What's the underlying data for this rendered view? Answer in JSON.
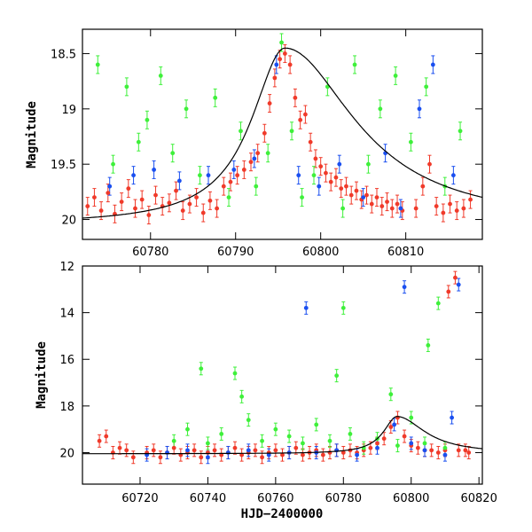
{
  "colors": {
    "red": "#f03a2a",
    "green": "#3ef03a",
    "blue": "#1a4ff0",
    "model": "#000000"
  },
  "chart_data": [
    {
      "id": "top",
      "type": "scatter",
      "title": "",
      "xlabel": "",
      "ylabel": "Magnitude",
      "xlim": [
        60772,
        60819
      ],
      "ylim": [
        20.18,
        18.28
      ],
      "inverted_y": true,
      "xticks": [
        60780,
        60790,
        60800,
        60810
      ],
      "yticks": [
        18.5,
        19,
        19.5,
        20
      ],
      "ytick_labels": [
        "18.5",
        "19",
        "19.5",
        "20"
      ],
      "grid": false,
      "series": [
        {
          "color": "red",
          "points": [
            [
              60772.6,
              19.88
            ],
            [
              60773.4,
              19.8
            ],
            [
              60774.2,
              19.92
            ],
            [
              60775.0,
              19.76
            ],
            [
              60775.8,
              19.95
            ],
            [
              60776.6,
              19.84
            ],
            [
              60777.4,
              19.72
            ],
            [
              60778.2,
              19.9
            ],
            [
              60779.0,
              19.82
            ],
            [
              60779.8,
              19.96
            ],
            [
              60780.6,
              19.78
            ],
            [
              60781.4,
              19.88
            ],
            [
              60782.2,
              19.85
            ],
            [
              60783.0,
              19.74
            ],
            [
              60783.8,
              19.92
            ],
            [
              60784.6,
              19.86
            ],
            [
              60785.4,
              19.8
            ],
            [
              60786.2,
              19.94
            ],
            [
              60787.0,
              19.83
            ],
            [
              60787.8,
              19.9
            ],
            [
              60788.6,
              19.7
            ],
            [
              60789.4,
              19.66
            ],
            [
              60790.2,
              19.6
            ],
            [
              60791.0,
              19.55
            ],
            [
              60791.8,
              19.48
            ],
            [
              60792.6,
              19.4
            ],
            [
              60793.4,
              19.22
            ],
            [
              60794.0,
              18.95
            ],
            [
              60794.6,
              18.72
            ],
            [
              60795.2,
              18.55
            ],
            [
              60795.8,
              18.5
            ],
            [
              60796.4,
              18.6
            ],
            [
              60797.0,
              18.9
            ],
            [
              60797.6,
              19.1
            ],
            [
              60798.2,
              19.05
            ],
            [
              60798.8,
              19.3
            ],
            [
              60799.4,
              19.45
            ],
            [
              60800.0,
              19.52
            ],
            [
              60800.6,
              19.58
            ],
            [
              60801.2,
              19.66
            ],
            [
              60801.8,
              19.62
            ],
            [
              60802.4,
              19.72
            ],
            [
              60803.0,
              19.7
            ],
            [
              60803.6,
              19.78
            ],
            [
              60804.2,
              19.74
            ],
            [
              60804.8,
              19.82
            ],
            [
              60805.4,
              19.78
            ],
            [
              60806.0,
              19.86
            ],
            [
              60806.6,
              19.8
            ],
            [
              60807.2,
              19.88
            ],
            [
              60807.8,
              19.84
            ],
            [
              60808.4,
              19.9
            ],
            [
              60809.0,
              19.86
            ],
            [
              60809.6,
              19.92
            ],
            [
              60811.2,
              19.9
            ],
            [
              60812.0,
              19.7
            ],
            [
              60812.8,
              19.5
            ],
            [
              60813.6,
              19.88
            ],
            [
              60814.4,
              19.94
            ],
            [
              60815.2,
              19.86
            ],
            [
              60816.0,
              19.92
            ],
            [
              60816.8,
              19.9
            ],
            [
              60817.6,
              19.82
            ]
          ]
        },
        {
          "color": "green",
          "points": [
            [
              60773.8,
              18.6
            ],
            [
              60775.6,
              19.5
            ],
            [
              60777.2,
              18.8
            ],
            [
              60778.6,
              19.3
            ],
            [
              60779.6,
              19.1
            ],
            [
              60781.2,
              18.7
            ],
            [
              60782.6,
              19.4
            ],
            [
              60784.2,
              19.0
            ],
            [
              60785.8,
              19.6
            ],
            [
              60787.6,
              18.9
            ],
            [
              60789.2,
              19.8
            ],
            [
              60790.6,
              19.2
            ],
            [
              60792.4,
              19.7
            ],
            [
              60793.8,
              19.4
            ],
            [
              60795.4,
              18.4
            ],
            [
              60796.6,
              19.2
            ],
            [
              60797.8,
              19.8
            ],
            [
              60799.2,
              19.6
            ],
            [
              60800.8,
              18.8
            ],
            [
              60802.6,
              19.9
            ],
            [
              60804.0,
              18.6
            ],
            [
              60805.6,
              19.5
            ],
            [
              60807.0,
              19.0
            ],
            [
              60808.8,
              18.7
            ],
            [
              60810.6,
              19.3
            ],
            [
              60812.4,
              18.8
            ],
            [
              60814.6,
              19.7
            ],
            [
              60816.4,
              19.2
            ]
          ]
        },
        {
          "color": "blue",
          "points": [
            [
              60775.2,
              19.7
            ],
            [
              60778.0,
              19.6
            ],
            [
              60780.4,
              19.55
            ],
            [
              60783.4,
              19.65
            ],
            [
              60786.8,
              19.6
            ],
            [
              60789.8,
              19.55
            ],
            [
              60792.2,
              19.45
            ],
            [
              60794.8,
              18.6
            ],
            [
              60797.4,
              19.6
            ],
            [
              60799.8,
              19.7
            ],
            [
              60802.2,
              19.5
            ],
            [
              60805.0,
              19.8
            ],
            [
              60807.6,
              19.4
            ],
            [
              60809.4,
              19.9
            ],
            [
              60811.6,
              19.0
            ],
            [
              60813.2,
              18.6
            ],
            [
              60815.6,
              19.6
            ]
          ]
        }
      ],
      "model": {
        "t0": 60795.8,
        "peak": 18.45,
        "base": 20.05,
        "rise_width": 4.8,
        "decay_width": 10.0
      }
    },
    {
      "id": "bottom",
      "type": "scatter",
      "title": "",
      "xlabel": "HJD−2400000",
      "ylabel": "Magnitude",
      "xlim": [
        60703,
        60821
      ],
      "ylim": [
        21.35,
        12.0
      ],
      "inverted_y": true,
      "xticks": [
        60720,
        60740,
        60760,
        60780,
        60800,
        60820
      ],
      "yticks": [
        12,
        14,
        16,
        18,
        20
      ],
      "ytick_labels": [
        "12",
        "14",
        "16",
        "18",
        "20"
      ],
      "grid": false,
      "series": [
        {
          "color": "red",
          "points": [
            [
              60708,
              19.5
            ],
            [
              60710,
              19.3
            ],
            [
              60712,
              20.0
            ],
            [
              60714,
              19.8
            ],
            [
              60716,
              19.9
            ],
            [
              60718,
              20.2
            ],
            [
              60722,
              20.0
            ],
            [
              60724,
              19.9
            ],
            [
              60726,
              20.2
            ],
            [
              60728,
              20.0
            ],
            [
              60730,
              19.8
            ],
            [
              60732,
              20.1
            ],
            [
              60734,
              20.0
            ],
            [
              60736,
              19.9
            ],
            [
              60738,
              20.2
            ],
            [
              60740,
              20.0
            ],
            [
              60742,
              19.9
            ],
            [
              60744,
              20.1
            ],
            [
              60746,
              20.0
            ],
            [
              60748,
              19.8
            ],
            [
              60750,
              20.1
            ],
            [
              60752,
              20.0
            ],
            [
              60754,
              19.9
            ],
            [
              60756,
              20.2
            ],
            [
              60758,
              20.0
            ],
            [
              60760,
              19.9
            ],
            [
              60762,
              20.1
            ],
            [
              60764,
              20.0
            ],
            [
              60766,
              19.8
            ],
            [
              60768,
              20.1
            ],
            [
              60770,
              20.0
            ],
            [
              60772,
              19.9
            ],
            [
              60774,
              20.1
            ],
            [
              60776,
              20.0
            ],
            [
              60778,
              19.9
            ],
            [
              60780,
              20.0
            ],
            [
              60782,
              19.9
            ],
            [
              60784,
              20.0
            ],
            [
              60786,
              19.9
            ],
            [
              60788,
              19.8
            ],
            [
              60790,
              19.6
            ],
            [
              60792,
              19.4
            ],
            [
              60794,
              18.9
            ],
            [
              60796,
              18.5
            ],
            [
              60798,
              19.3
            ],
            [
              60800,
              19.7
            ],
            [
              60802,
              19.8
            ],
            [
              60804,
              19.9
            ],
            [
              60806,
              19.9
            ],
            [
              60808,
              20.0
            ],
            [
              60810,
              19.9
            ],
            [
              60811,
              13.1
            ],
            [
              60813,
              12.5
            ],
            [
              60814,
              19.9
            ],
            [
              60816,
              19.9
            ],
            [
              60817,
              20.0
            ]
          ]
        },
        {
          "color": "green",
          "points": [
            [
              60730,
              19.5
            ],
            [
              60734,
              19.0
            ],
            [
              60738,
              16.4
            ],
            [
              60740,
              19.6
            ],
            [
              60744,
              19.2
            ],
            [
              60748,
              16.6
            ],
            [
              60750,
              17.6
            ],
            [
              60752,
              18.6
            ],
            [
              60756,
              19.5
            ],
            [
              60760,
              19.0
            ],
            [
              60764,
              19.3
            ],
            [
              60768,
              19.6
            ],
            [
              60772,
              18.8
            ],
            [
              60776,
              19.5
            ],
            [
              60778,
              16.7
            ],
            [
              60780,
              13.8
            ],
            [
              60782,
              19.2
            ],
            [
              60786,
              19.8
            ],
            [
              60790,
              19.4
            ],
            [
              60794,
              17.5
            ],
            [
              60796,
              19.7
            ],
            [
              60800,
              18.5
            ],
            [
              60804,
              19.6
            ],
            [
              60805,
              15.4
            ],
            [
              60808,
              13.6
            ],
            [
              60810,
              19.8
            ]
          ]
        },
        {
          "color": "blue",
          "points": [
            [
              60722,
              20.1
            ],
            [
              60728,
              20.0
            ],
            [
              60734,
              19.9
            ],
            [
              60740,
              20.2
            ],
            [
              60746,
              20.0
            ],
            [
              60752,
              19.9
            ],
            [
              60758,
              20.1
            ],
            [
              60764,
              20.0
            ],
            [
              60769,
              13.8
            ],
            [
              60772,
              20.0
            ],
            [
              60778,
              19.9
            ],
            [
              60784,
              20.1
            ],
            [
              60790,
              19.8
            ],
            [
              60795,
              18.8
            ],
            [
              60798,
              12.9
            ],
            [
              60800,
              19.6
            ],
            [
              60804,
              19.9
            ],
            [
              60810,
              20.1
            ],
            [
              60812,
              18.5
            ],
            [
              60814,
              12.8
            ]
          ]
        }
      ],
      "model": {
        "t0": 60795.8,
        "peak": 18.45,
        "base": 20.05,
        "rise_width": 4.8,
        "decay_width": 10.0
      }
    }
  ]
}
